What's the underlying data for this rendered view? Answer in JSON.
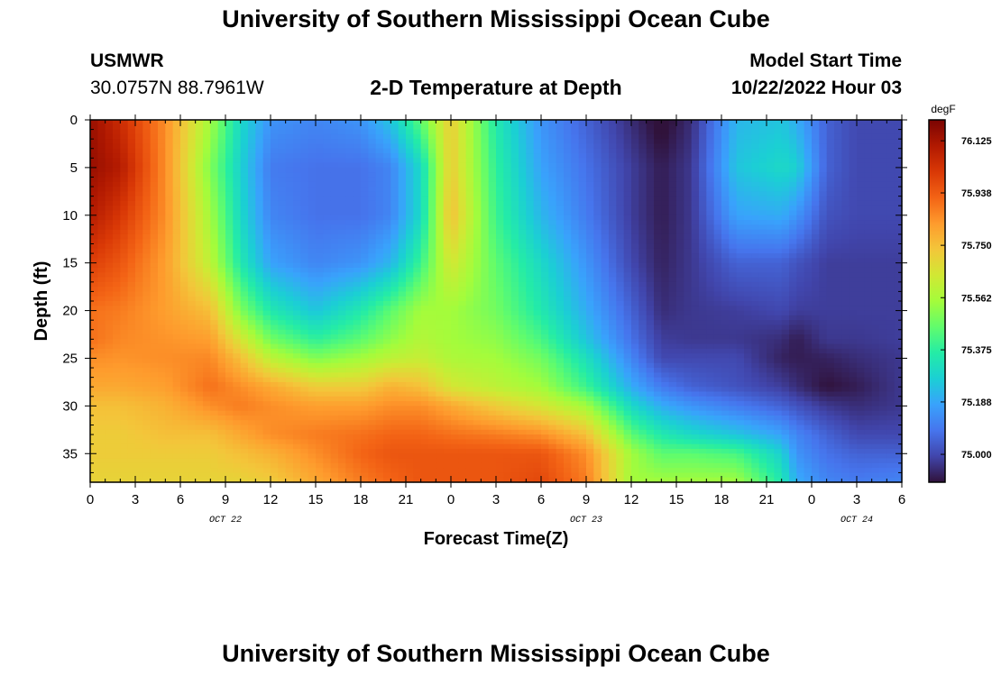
{
  "header": {
    "title": "University of Southern Mississippi Ocean Cube",
    "station": "USMWR",
    "coords": "30.0757N  88.7961W",
    "model_label": "Model Start Time",
    "model_time": "10/22/2022 Hour 03",
    "footer_title": "University of Southern Mississippi Ocean Cube"
  },
  "chart_data": {
    "type": "heatmap",
    "title": "2-D Temperature at Depth",
    "xlabel": "Forecast Time(Z)",
    "ylabel": "Depth (ft)",
    "units": "degF",
    "x_ticks": [
      "0",
      "3",
      "6",
      "9",
      "12",
      "15",
      "18",
      "21",
      "0",
      "3",
      "6",
      "9",
      "12",
      "15",
      "18",
      "21",
      "0",
      "3",
      "6"
    ],
    "date_labels": [
      {
        "text": "OCT 22",
        "hour": 9
      },
      {
        "text": "OCT 23",
        "hour": 33
      },
      {
        "text": "OCT 24",
        "hour": 51
      }
    ],
    "y_ticks": [
      "0",
      "5",
      "10",
      "15",
      "20",
      "25",
      "30",
      "35"
    ],
    "xlim": [
      0,
      54
    ],
    "ylim": [
      0,
      38
    ],
    "colorbar_ticks": [
      "76.125",
      "75.938",
      "75.750",
      "75.562",
      "75.375",
      "75.188",
      "75.000"
    ],
    "color_range": [
      74.9,
      76.2
    ],
    "colormap": [
      "#30123b",
      "#4145ab",
      "#4675ed",
      "#39a2fc",
      "#1bcfd4",
      "#24eca6",
      "#61fc6c",
      "#a4fc3b",
      "#d1e834",
      "#f3c63a",
      "#fe9b2d",
      "#f36315",
      "#d93806",
      "#b11901",
      "#7a0402"
    ],
    "profiles": {
      "hours": [
        0,
        2,
        5,
        8,
        10,
        12,
        15,
        18,
        20,
        22,
        24,
        27,
        30,
        33,
        36,
        38,
        40,
        43,
        46,
        47,
        49,
        51,
        54
      ],
      "depths": [
        0,
        5,
        10,
        15,
        20,
        23,
        25,
        28,
        30,
        33,
        35,
        38
      ],
      "values": [
        [
          76.15,
          76.15,
          76.1,
          76.0,
          75.9,
          75.9,
          75.85,
          75.8,
          75.75,
          75.72,
          75.72,
          75.7
        ],
        [
          76.05,
          76.1,
          76.02,
          75.95,
          75.88,
          75.86,
          75.84,
          75.8,
          75.75,
          75.72,
          75.72,
          75.7
        ],
        [
          75.85,
          75.85,
          75.85,
          75.82,
          75.82,
          75.84,
          75.85,
          75.82,
          75.78,
          75.75,
          75.72,
          75.7
        ],
        [
          75.55,
          75.5,
          75.55,
          75.6,
          75.75,
          75.82,
          75.86,
          75.9,
          75.85,
          75.75,
          75.72,
          75.7
        ],
        [
          75.3,
          75.28,
          75.3,
          75.35,
          75.5,
          75.65,
          75.75,
          75.85,
          75.88,
          75.8,
          75.75,
          75.7
        ],
        [
          75.15,
          75.1,
          75.12,
          75.18,
          75.35,
          75.48,
          75.6,
          75.8,
          75.85,
          75.85,
          75.78,
          75.72
        ],
        [
          75.12,
          75.08,
          75.08,
          75.12,
          75.25,
          75.38,
          75.5,
          75.72,
          75.82,
          75.88,
          75.85,
          75.8
        ],
        [
          75.15,
          75.08,
          75.08,
          75.15,
          75.35,
          75.45,
          75.55,
          75.72,
          75.82,
          75.9,
          75.92,
          75.88
        ],
        [
          75.25,
          75.12,
          75.12,
          75.22,
          75.45,
          75.52,
          75.6,
          75.78,
          75.85,
          75.92,
          75.95,
          75.92
        ],
        [
          75.45,
          75.3,
          75.3,
          75.4,
          75.55,
          75.58,
          75.62,
          75.75,
          75.85,
          75.92,
          75.95,
          75.95
        ],
        [
          75.72,
          75.72,
          75.75,
          75.65,
          75.55,
          75.55,
          75.57,
          75.65,
          75.8,
          75.9,
          75.95,
          75.95
        ],
        [
          75.35,
          75.38,
          75.4,
          75.45,
          75.48,
          75.52,
          75.55,
          75.6,
          75.72,
          75.88,
          75.95,
          75.95
        ],
        [
          75.15,
          75.18,
          75.22,
          75.3,
          75.35,
          75.42,
          75.48,
          75.55,
          75.65,
          75.85,
          75.95,
          75.98
        ],
        [
          75.05,
          75.08,
          75.1,
          75.15,
          75.2,
          75.25,
          75.32,
          75.4,
          75.55,
          75.75,
          75.85,
          75.88
        ],
        [
          74.95,
          74.98,
          74.98,
          75.0,
          75.05,
          75.08,
          75.12,
          75.2,
          75.3,
          75.45,
          75.55,
          75.55
        ],
        [
          74.88,
          74.92,
          74.92,
          74.93,
          74.95,
          74.98,
          75.0,
          75.1,
          75.2,
          75.35,
          75.45,
          75.55
        ],
        [
          74.95,
          74.97,
          74.97,
          74.97,
          74.97,
          74.97,
          75.0,
          75.05,
          75.15,
          75.3,
          75.45,
          75.55
        ],
        [
          75.22,
          75.25,
          75.18,
          75.05,
          74.98,
          74.97,
          75.0,
          75.02,
          75.1,
          75.25,
          75.42,
          75.55
        ],
        [
          75.25,
          75.3,
          75.2,
          75.05,
          75.0,
          74.95,
          74.93,
          74.98,
          75.05,
          75.18,
          75.28,
          75.35
        ],
        [
          75.2,
          75.28,
          75.15,
          75.02,
          74.98,
          74.92,
          74.92,
          74.95,
          75.02,
          75.12,
          75.15,
          75.2
        ],
        [
          75.05,
          75.05,
          75.02,
          74.98,
          74.98,
          74.97,
          74.93,
          74.9,
          74.97,
          75.05,
          75.08,
          75.12
        ],
        [
          75.0,
          75.0,
          75.0,
          74.98,
          74.98,
          74.97,
          74.95,
          74.92,
          74.95,
          75.0,
          75.05,
          75.1
        ],
        [
          75.0,
          75.0,
          75.0,
          74.98,
          74.98,
          74.98,
          74.97,
          74.97,
          74.97,
          75.0,
          75.05,
          75.12
        ]
      ]
    }
  }
}
